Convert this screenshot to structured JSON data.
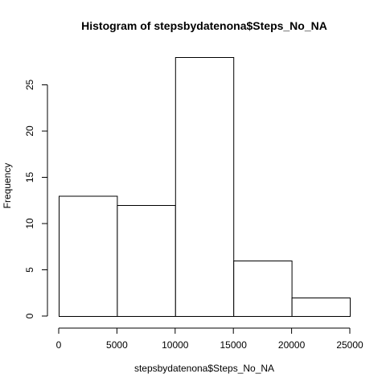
{
  "chart_data": {
    "type": "bar",
    "title": "Histogram of stepsbydatenona$Steps_No_NA",
    "xlabel": "stepsbydatenona$Steps_No_NA",
    "ylabel": "Frequency",
    "bins": [
      {
        "start": 0,
        "end": 5000,
        "count": 13
      },
      {
        "start": 5000,
        "end": 10000,
        "count": 12
      },
      {
        "start": 10000,
        "end": 15000,
        "count": 28
      },
      {
        "start": 15000,
        "end": 20000,
        "count": 6
      },
      {
        "start": 20000,
        "end": 25000,
        "count": 2
      }
    ],
    "xticks": [
      0,
      5000,
      10000,
      15000,
      20000,
      25000
    ],
    "yticks": [
      0,
      5,
      10,
      15,
      20,
      25
    ],
    "xlim": [
      0,
      25000
    ],
    "ylim": [
      0,
      28
    ],
    "grid": false
  }
}
